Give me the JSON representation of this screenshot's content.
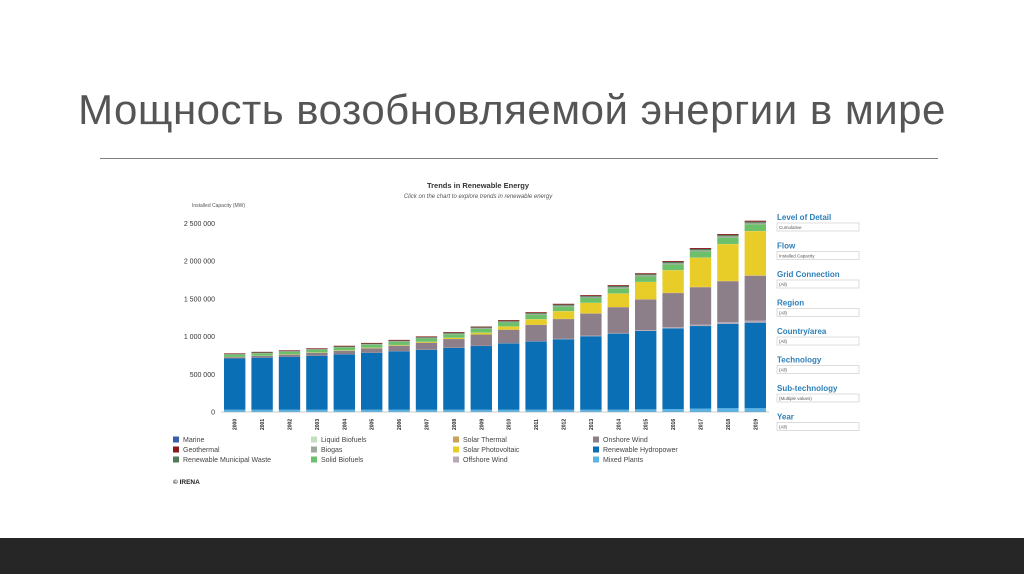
{
  "slide": {
    "title": "Мощность возобновляемой энергии в мире"
  },
  "chart_data": {
    "type": "bar",
    "stacked": true,
    "title": "Trends in Renewable Energy",
    "subtitle": "Click on the chart to explore trends in renewable energy",
    "ylabel": "Installed Capacity (MW)",
    "xlabel": "",
    "ylim": [
      0,
      2600000
    ],
    "yticks": [
      0,
      500000,
      1000000,
      1500000,
      2000000,
      2500000
    ],
    "ytick_labels": [
      "0",
      "500 000",
      "1 000 000",
      "1 500 000",
      "2 000 000",
      "2 500 000"
    ],
    "categories": [
      "2000",
      "2001",
      "2002",
      "2003",
      "2004",
      "2005",
      "2006",
      "2007",
      "2008",
      "2009",
      "2010",
      "2011",
      "2012",
      "2013",
      "2014",
      "2015",
      "2016",
      "2017",
      "2018",
      "2019"
    ],
    "grid": false,
    "legend_position": "bottom",
    "series": [
      {
        "name": "Mixed Plants",
        "color": "#5ab4e6",
        "values": [
          30000,
          30000,
          30000,
          30000,
          30000,
          30000,
          30000,
          30000,
          30000,
          30000,
          30000,
          30000,
          30000,
          30000,
          30000,
          35000,
          40000,
          45000,
          50000,
          50000
        ]
      },
      {
        "name": "Renewable Hydropower",
        "color": "#0a6fb5",
        "values": [
          680000,
          690000,
          700000,
          715000,
          735000,
          755000,
          775000,
          795000,
          820000,
          845000,
          880000,
          905000,
          935000,
          975000,
          1010000,
          1040000,
          1070000,
          1095000,
          1120000,
          1135000
        ]
      },
      {
        "name": "Marine",
        "color": "#3a5fa8",
        "values": [
          300,
          300,
          300,
          300,
          300,
          300,
          300,
          300,
          300,
          300,
          300,
          500,
          500,
          500,
          500,
          500,
          500,
          500,
          500,
          500
        ]
      },
      {
        "name": "Offshore Wind",
        "color": "#b8a9b5",
        "values": [
          0,
          0,
          0,
          500,
          600,
          700,
          900,
          1100,
          1500,
          2000,
          3000,
          4000,
          5000,
          7000,
          8000,
          12000,
          14000,
          18000,
          23000,
          28000
        ]
      },
      {
        "name": "Onshore Wind",
        "color": "#8d7f8a",
        "values": [
          17000,
          24000,
          31000,
          39000,
          47000,
          59000,
          74000,
          93000,
          116000,
          150000,
          178000,
          216000,
          262000,
          293000,
          340000,
          404000,
          453000,
          496000,
          540000,
          594000
        ]
      },
      {
        "name": "Solar Thermal",
        "color": "#c9a15a",
        "values": [
          400,
          400,
          400,
          400,
          400,
          400,
          400,
          500,
          600,
          700,
          1000,
          1500,
          2500,
          3500,
          4500,
          4800,
          4900,
          5000,
          5500,
          6000
        ]
      },
      {
        "name": "Solar Photovoltaic",
        "color": "#e8cc27",
        "values": [
          1000,
          1200,
          2000,
          3000,
          4000,
          6000,
          7000,
          10000,
          15000,
          23000,
          41000,
          73000,
          102000,
          138000,
          178000,
          228000,
          298000,
          388000,
          488000,
          586000
        ]
      },
      {
        "name": "Liquid Biofuels",
        "color": "#c4dfc0",
        "values": [
          2000,
          2000,
          2000,
          2000,
          2000,
          2000,
          2000,
          2000,
          2000,
          2000,
          2000,
          2000,
          2000,
          2000,
          2000,
          2000,
          2000,
          2000,
          2000,
          2000
        ]
      },
      {
        "name": "Solid Biofuels",
        "color": "#6cc06a",
        "values": [
          30000,
          31000,
          33000,
          35000,
          37000,
          39000,
          41000,
          43000,
          46000,
          49000,
          52000,
          56000,
          59000,
          63000,
          68000,
          72000,
          76000,
          80000,
          84000,
          88000
        ]
      },
      {
        "name": "Biogas",
        "color": "#9aa99a",
        "values": [
          4000,
          4500,
          5000,
          5500,
          6000,
          7000,
          8000,
          9000,
          10000,
          11000,
          12000,
          14000,
          15000,
          16000,
          17000,
          17000,
          18000,
          18500,
          19000,
          19500
        ]
      },
      {
        "name": "Renewable Municipal Waste",
        "color": "#4f7a55",
        "values": [
          6000,
          6500,
          7000,
          7500,
          8000,
          8500,
          9000,
          9500,
          10000,
          10500,
          11000,
          11500,
          12000,
          12500,
          13000,
          13500,
          14000,
          14500,
          15000,
          15500
        ]
      },
      {
        "name": "Geothermal",
        "color": "#8b1a1a",
        "values": [
          8000,
          8100,
          8200,
          8300,
          8500,
          8700,
          9000,
          9300,
          9600,
          10000,
          10200,
          10500,
          10700,
          11000,
          11400,
          11800,
          12000,
          12500,
          13000,
          13500
        ]
      }
    ],
    "legend_layout": [
      [
        "Marine",
        "Geothermal",
        "Renewable Municipal Waste"
      ],
      [
        "Liquid Biofuels",
        "Biogas",
        "Solid Biofuels"
      ],
      [
        "Solar Thermal",
        "Solar Photovoltaic",
        "Offshore Wind"
      ],
      [
        "Onshore Wind",
        "Renewable Hydropower",
        "Mixed Plants"
      ]
    ],
    "credit": "© IRENA"
  },
  "filters": [
    {
      "label": "Level of Detail",
      "value": "Cumulative"
    },
    {
      "label": "Flow",
      "value": "Installed Capacity"
    },
    {
      "label": "Grid Connection",
      "value": "(All)"
    },
    {
      "label": "Region",
      "value": "(All)"
    },
    {
      "label": "Country/area",
      "value": "(All)"
    },
    {
      "label": "Technology",
      "value": "(All)"
    },
    {
      "label": "Sub-technology",
      "value": "(Multiple values)"
    },
    {
      "label": "Year",
      "value": "(All)"
    }
  ]
}
